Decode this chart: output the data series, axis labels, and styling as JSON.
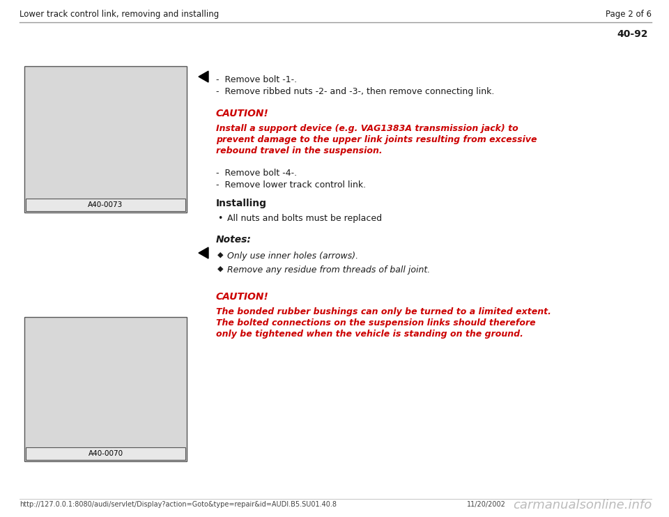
{
  "header_left": "Lower track control link, removing and installing",
  "header_right": "Page 2 of 6",
  "page_number": "40-92",
  "footer_url": "http://127.0.0.1:8080/audi/servlet/Display?action=Goto&type=repair&id=AUDI.B5.SU01.40.8",
  "footer_date": "11/20/2002",
  "footer_watermark": "carmanualsonline.info",
  "bg_color": "#ffffff",
  "header_line_color": "#999999",
  "text_color_normal": "#1a1a1a",
  "text_color_red": "#cc0000",
  "bullet1_lines": [
    "-  Remove bolt -1-.",
    "-  Remove ribbed nuts -2- and -3-, then remove connecting link."
  ],
  "caution1_label": "CAUTION!",
  "caution1_text_lines": [
    "Install a support device (e.g. VAG1383A transmission jack) to",
    "prevent damage to the upper link joints resulting from excessive",
    "rebound travel in the suspension."
  ],
  "bullet2_lines": [
    "-  Remove bolt -4-.",
    "-  Remove lower track control link."
  ],
  "installing_label": "Installing",
  "installing_bullet": "All nuts and bolts must be replaced",
  "notes_label": "Notes:",
  "notes_bullets": [
    "Only use inner holes (arrows).",
    "Remove any residue from threads of ball joint."
  ],
  "caution2_label": "CAUTION!",
  "caution2_text_lines": [
    "The bonded rubber bushings can only be turned to a limited extent.",
    "The bolted connections on the suspension links should therefore",
    "only be tightened when the vehicle is standing on the ground."
  ],
  "image1_label": "A40-0073",
  "image2_label": "A40-0070"
}
